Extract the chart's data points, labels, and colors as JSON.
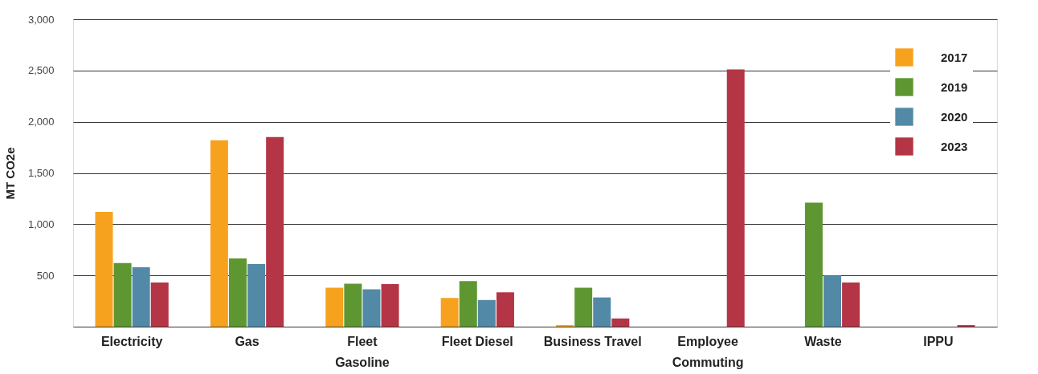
{
  "chart_data": {
    "type": "bar",
    "ylabel": "MT CO2e",
    "categories": [
      "Electricity",
      "Gas",
      "Fleet\nGasoline",
      "Fleet Diesel",
      "Business Travel",
      "Employee\nCommuting",
      "Waste",
      "IPPU"
    ],
    "series": [
      {
        "name": "2017",
        "color": "#f7a21e",
        "values": [
          1120,
          1820,
          380,
          280,
          15,
          null,
          null,
          null
        ]
      },
      {
        "name": "2019",
        "color": "#5e9732",
        "values": [
          620,
          665,
          420,
          445,
          380,
          null,
          1210,
          null
        ]
      },
      {
        "name": "2020",
        "color": "#5289a6",
        "values": [
          580,
          610,
          365,
          260,
          285,
          null,
          500,
          null
        ]
      },
      {
        "name": "2023",
        "color": "#b43545",
        "values": [
          430,
          1850,
          415,
          335,
          80,
          2510,
          430,
          15
        ]
      }
    ],
    "ylim": [
      0,
      3000
    ],
    "yticks": [
      {
        "value": 0,
        "label": null
      },
      500,
      {
        "value": 1000,
        "label": "1,000"
      },
      {
        "value": 1500,
        "label": "1,500"
      },
      {
        "value": 2000,
        "label": "2,000"
      },
      {
        "value": 2500,
        "label": "2,500"
      },
      {
        "value": 3000,
        "label": "3,000"
      }
    ],
    "grid": "y",
    "legend": "top right"
  }
}
